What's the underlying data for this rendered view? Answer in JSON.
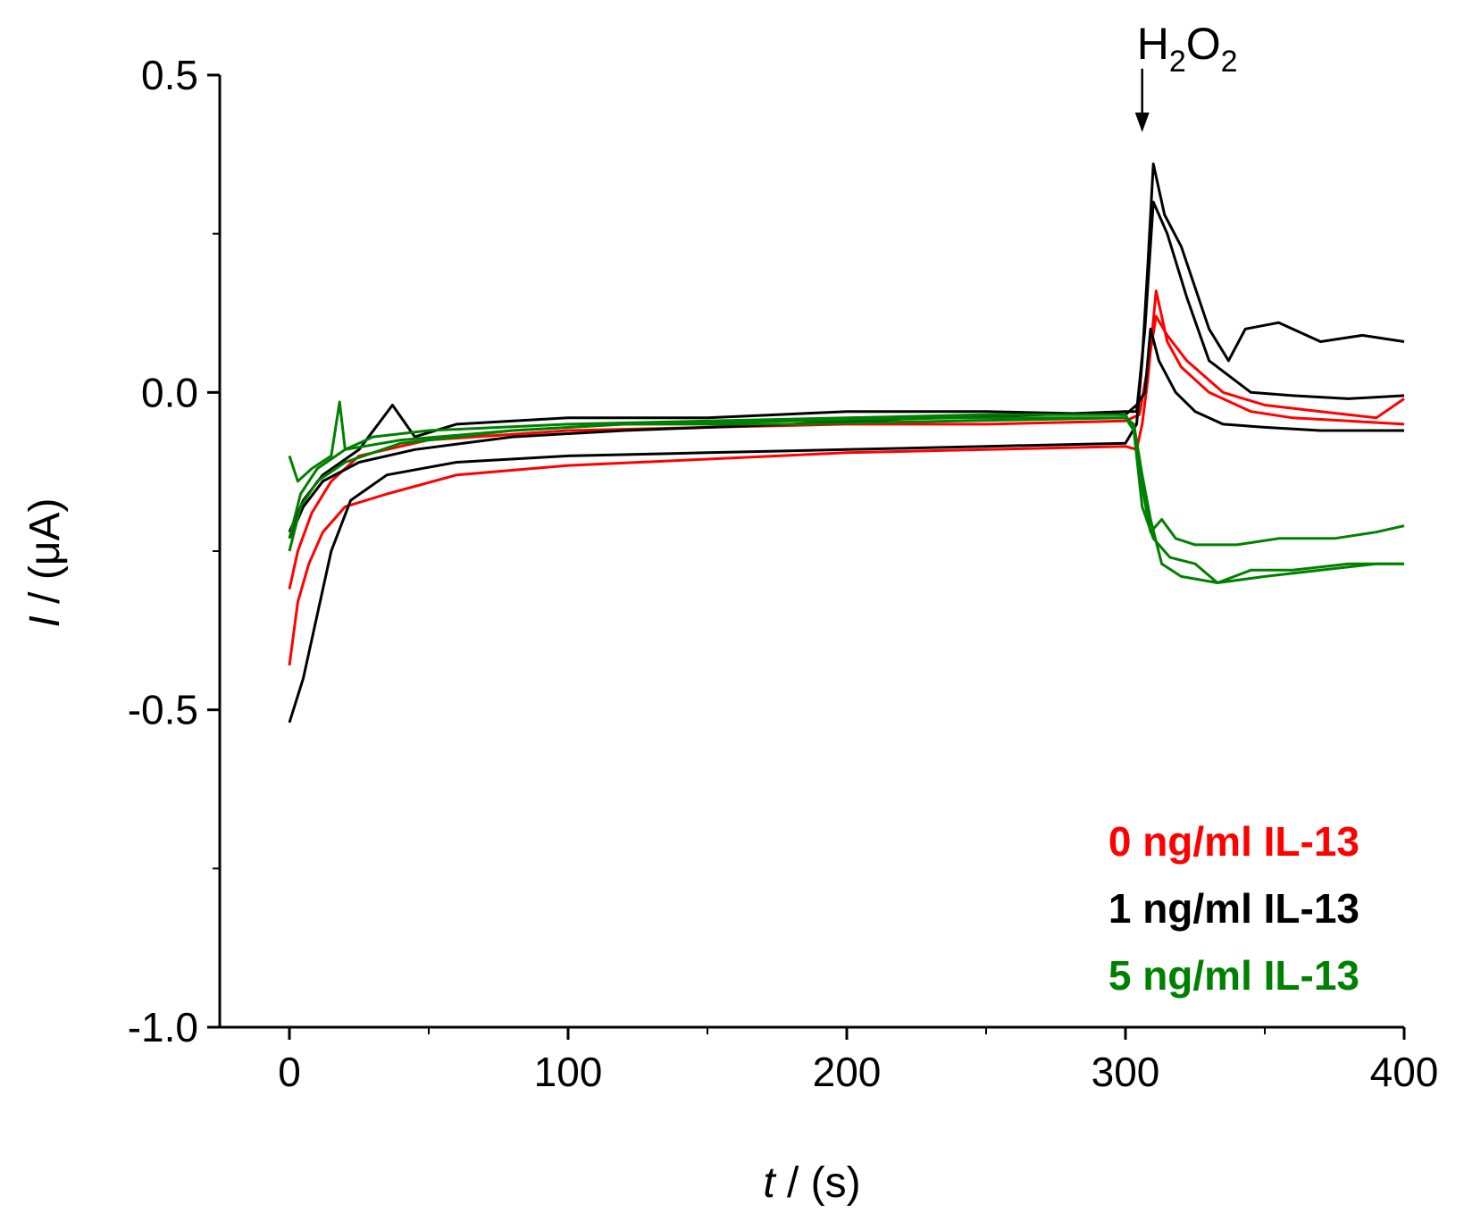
{
  "chart_data": {
    "type": "line",
    "title": "",
    "xlabel_var": "t",
    "xlabel_unit": " / (s)",
    "ylabel_var": "I",
    "ylabel_unit": " / (μA)",
    "xlim": [
      -25,
      400
    ],
    "ylim": [
      -1.0,
      0.5
    ],
    "x_ticks": [
      0,
      100,
      200,
      300,
      400
    ],
    "x_tick_labels": [
      "0",
      "100",
      "200",
      "300",
      "400"
    ],
    "y_ticks": [
      -1.0,
      -0.5,
      0.0,
      0.5
    ],
    "y_tick_labels": [
      "-1.0",
      "-0.5",
      "0.0",
      "0.5"
    ],
    "grid": false,
    "legend_position": "bottom-right",
    "annotation": {
      "main": "H",
      "sub1": "2",
      "mid": "O",
      "sub2": "2",
      "x": 306,
      "arrow_from_y": 0.51,
      "arrow_to_y": 0.41
    },
    "series": [
      {
        "name": "0 ng/ml IL-13",
        "color": "#ff0000",
        "points": [
          [
            0,
            -0.43
          ],
          [
            3,
            -0.33
          ],
          [
            7,
            -0.27
          ],
          [
            12,
            -0.22
          ],
          [
            20,
            -0.18
          ],
          [
            35,
            -0.16
          ],
          [
            60,
            -0.13
          ],
          [
            100,
            -0.115
          ],
          [
            150,
            -0.105
          ],
          [
            200,
            -0.095
          ],
          [
            250,
            -0.09
          ],
          [
            300,
            -0.085
          ],
          [
            304,
            -0.09
          ],
          [
            306,
            -0.05
          ],
          [
            308,
            0.02
          ],
          [
            311,
            0.16
          ],
          [
            315,
            0.08
          ],
          [
            320,
            0.04
          ],
          [
            330,
            0.0
          ],
          [
            345,
            -0.03
          ],
          [
            360,
            -0.04
          ],
          [
            380,
            -0.045
          ],
          [
            400,
            -0.05
          ]
        ]
      },
      {
        "name": "0 ng/ml IL-13",
        "color": "#ff0000",
        "points": [
          [
            0,
            -0.31
          ],
          [
            3,
            -0.25
          ],
          [
            8,
            -0.19
          ],
          [
            15,
            -0.14
          ],
          [
            25,
            -0.1
          ],
          [
            50,
            -0.075
          ],
          [
            100,
            -0.06
          ],
          [
            150,
            -0.055
          ],
          [
            200,
            -0.05
          ],
          [
            250,
            -0.05
          ],
          [
            300,
            -0.045
          ],
          [
            305,
            -0.035
          ],
          [
            308,
            0.04
          ],
          [
            311,
            0.12
          ],
          [
            315,
            0.09
          ],
          [
            322,
            0.05
          ],
          [
            335,
            0.0
          ],
          [
            350,
            -0.02
          ],
          [
            370,
            -0.03
          ],
          [
            390,
            -0.04
          ],
          [
            400,
            -0.01
          ]
        ]
      },
      {
        "name": "1 ng/ml IL-13",
        "color": "#000000",
        "points": [
          [
            0,
            -0.52
          ],
          [
            5,
            -0.45
          ],
          [
            10,
            -0.35
          ],
          [
            15,
            -0.25
          ],
          [
            22,
            -0.17
          ],
          [
            35,
            -0.13
          ],
          [
            60,
            -0.11
          ],
          [
            100,
            -0.1
          ],
          [
            150,
            -0.095
          ],
          [
            200,
            -0.09
          ],
          [
            250,
            -0.085
          ],
          [
            300,
            -0.08
          ],
          [
            304,
            -0.05
          ],
          [
            306,
            0.05
          ],
          [
            308,
            0.2
          ],
          [
            310,
            0.36
          ],
          [
            314,
            0.28
          ],
          [
            320,
            0.23
          ],
          [
            330,
            0.1
          ],
          [
            337,
            0.05
          ],
          [
            343,
            0.1
          ],
          [
            355,
            0.11
          ],
          [
            370,
            0.08
          ],
          [
            385,
            0.09
          ],
          [
            400,
            0.08
          ]
        ]
      },
      {
        "name": "1 ng/ml IL-13",
        "color": "#000000",
        "points": [
          [
            0,
            -0.23
          ],
          [
            5,
            -0.18
          ],
          [
            12,
            -0.14
          ],
          [
            25,
            -0.11
          ],
          [
            45,
            -0.09
          ],
          [
            80,
            -0.07
          ],
          [
            120,
            -0.06
          ],
          [
            180,
            -0.05
          ],
          [
            230,
            -0.04
          ],
          [
            270,
            -0.035
          ],
          [
            300,
            -0.03
          ],
          [
            304,
            -0.03
          ],
          [
            307,
            0.1
          ],
          [
            310,
            0.3
          ],
          [
            315,
            0.25
          ],
          [
            322,
            0.15
          ],
          [
            330,
            0.05
          ],
          [
            345,
            0.0
          ],
          [
            360,
            -0.005
          ],
          [
            380,
            -0.01
          ],
          [
            400,
            -0.005
          ]
        ]
      },
      {
        "name": "1 ng/ml IL-13",
        "color": "#000000",
        "points": [
          [
            0,
            -0.22
          ],
          [
            5,
            -0.17
          ],
          [
            12,
            -0.13
          ],
          [
            25,
            -0.09
          ],
          [
            37,
            -0.02
          ],
          [
            45,
            -0.07
          ],
          [
            60,
            -0.05
          ],
          [
            100,
            -0.04
          ],
          [
            150,
            -0.04
          ],
          [
            200,
            -0.03
          ],
          [
            250,
            -0.03
          ],
          [
            300,
            -0.035
          ],
          [
            304,
            -0.02
          ],
          [
            307,
            0.0
          ],
          [
            309,
            0.1
          ],
          [
            312,
            0.05
          ],
          [
            318,
            0.0
          ],
          [
            325,
            -0.03
          ],
          [
            335,
            -0.05
          ],
          [
            350,
            -0.055
          ],
          [
            370,
            -0.06
          ],
          [
            400,
            -0.06
          ]
        ]
      },
      {
        "name": "5 ng/ml IL-13",
        "color": "#008000",
        "points": [
          [
            0,
            -0.1
          ],
          [
            3,
            -0.14
          ],
          [
            8,
            -0.12
          ],
          [
            15,
            -0.1
          ],
          [
            18,
            -0.015
          ],
          [
            20,
            -0.09
          ],
          [
            30,
            -0.07
          ],
          [
            50,
            -0.06
          ],
          [
            100,
            -0.05
          ],
          [
            150,
            -0.045
          ],
          [
            200,
            -0.04
          ],
          [
            250,
            -0.035
          ],
          [
            300,
            -0.035
          ],
          [
            303,
            -0.06
          ],
          [
            306,
            -0.15
          ],
          [
            309,
            -0.22
          ],
          [
            313,
            -0.2
          ],
          [
            318,
            -0.23
          ],
          [
            325,
            -0.24
          ],
          [
            340,
            -0.24
          ],
          [
            355,
            -0.23
          ],
          [
            375,
            -0.23
          ],
          [
            390,
            -0.22
          ],
          [
            400,
            -0.21
          ]
        ]
      },
      {
        "name": "5 ng/ml IL-13",
        "color": "#008000",
        "points": [
          [
            0,
            -0.23
          ],
          [
            4,
            -0.16
          ],
          [
            10,
            -0.12
          ],
          [
            20,
            -0.09
          ],
          [
            40,
            -0.075
          ],
          [
            80,
            -0.06
          ],
          [
            120,
            -0.05
          ],
          [
            180,
            -0.05
          ],
          [
            240,
            -0.045
          ],
          [
            300,
            -0.04
          ],
          [
            303,
            -0.05
          ],
          [
            306,
            -0.13
          ],
          [
            309,
            -0.2
          ],
          [
            313,
            -0.27
          ],
          [
            320,
            -0.29
          ],
          [
            333,
            -0.3
          ],
          [
            350,
            -0.29
          ],
          [
            370,
            -0.28
          ],
          [
            390,
            -0.27
          ],
          [
            400,
            -0.27
          ]
        ]
      },
      {
        "name": "5 ng/ml IL-13",
        "color": "#008000",
        "points": [
          [
            0,
            -0.25
          ],
          [
            4,
            -0.18
          ],
          [
            10,
            -0.14
          ],
          [
            20,
            -0.11
          ],
          [
            40,
            -0.08
          ],
          [
            80,
            -0.06
          ],
          [
            120,
            -0.05
          ],
          [
            180,
            -0.045
          ],
          [
            240,
            -0.04
          ],
          [
            300,
            -0.04
          ],
          [
            303,
            -0.06
          ],
          [
            306,
            -0.18
          ],
          [
            310,
            -0.23
          ],
          [
            316,
            -0.26
          ],
          [
            325,
            -0.27
          ],
          [
            333,
            -0.3
          ],
          [
            345,
            -0.28
          ],
          [
            360,
            -0.28
          ],
          [
            380,
            -0.27
          ],
          [
            400,
            -0.27
          ]
        ]
      }
    ],
    "legend": [
      {
        "label": "0 ng/ml IL-13",
        "color": "#ff0000"
      },
      {
        "label": "1 ng/ml IL-13",
        "color": "#000000"
      },
      {
        "label": "5 ng/ml IL-13",
        "color": "#008000"
      }
    ]
  }
}
